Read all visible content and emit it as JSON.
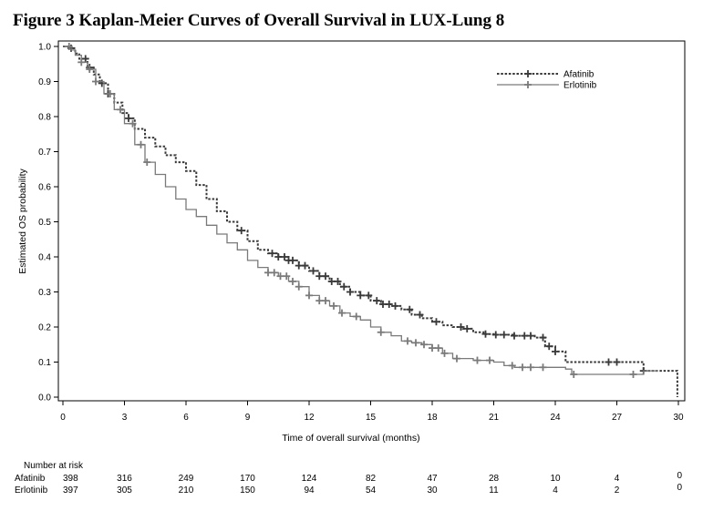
{
  "figure": {
    "title": "Figure 3    Kaplan-Meier Curves of Overall Survival in LUX-Lung 8"
  },
  "chart_data": {
    "type": "line",
    "title": "Kaplan-Meier Curves of Overall Survival in LUX-Lung 8",
    "xlabel": "Time of overall survival (months)",
    "ylabel": "Estimated OS probability",
    "xlim": [
      0,
      30
    ],
    "ylim": [
      0,
      1.0
    ],
    "x_ticks": [
      0,
      3,
      6,
      9,
      12,
      15,
      18,
      21,
      24,
      27,
      30
    ],
    "y_ticks": [
      0.0,
      0.1,
      0.2,
      0.3,
      0.4,
      0.5,
      0.6,
      0.7,
      0.8,
      0.9,
      1.0
    ],
    "x_tick_labels": [
      "0",
      "3",
      "6",
      "9",
      "12",
      "15",
      "18",
      "21",
      "24",
      "27",
      "30"
    ],
    "y_tick_labels": [
      "0.0",
      "0.1",
      "0.2",
      "0.3",
      "0.4",
      "0.5",
      "0.6",
      "0.7",
      "0.8",
      "0.9",
      "1.0"
    ],
    "grid": false,
    "legend_position": "top-right",
    "series": [
      {
        "name": "Afatinib",
        "color": "#3a3a3a",
        "line_style": "dotted",
        "points": [
          [
            0,
            1.0
          ],
          [
            0.4,
            0.995
          ],
          [
            0.6,
            0.98
          ],
          [
            0.8,
            0.965
          ],
          [
            1.2,
            0.94
          ],
          [
            1.5,
            0.92
          ],
          [
            1.8,
            0.895
          ],
          [
            2.2,
            0.865
          ],
          [
            2.5,
            0.84
          ],
          [
            2.9,
            0.81
          ],
          [
            3.2,
            0.795
          ],
          [
            3.5,
            0.765
          ],
          [
            4.0,
            0.74
          ],
          [
            4.5,
            0.715
          ],
          [
            5.0,
            0.69
          ],
          [
            5.5,
            0.67
          ],
          [
            6.0,
            0.645
          ],
          [
            6.5,
            0.605
          ],
          [
            7.0,
            0.565
          ],
          [
            7.5,
            0.53
          ],
          [
            8.0,
            0.5
          ],
          [
            8.5,
            0.475
          ],
          [
            9.0,
            0.445
          ],
          [
            9.5,
            0.42
          ],
          [
            10.0,
            0.41
          ],
          [
            10.5,
            0.4
          ],
          [
            11.0,
            0.39
          ],
          [
            11.5,
            0.375
          ],
          [
            12.0,
            0.36
          ],
          [
            12.5,
            0.345
          ],
          [
            13.0,
            0.33
          ],
          [
            13.5,
            0.315
          ],
          [
            14.0,
            0.3
          ],
          [
            14.5,
            0.29
          ],
          [
            15.0,
            0.275
          ],
          [
            15.5,
            0.265
          ],
          [
            16.0,
            0.26
          ],
          [
            16.5,
            0.25
          ],
          [
            17.0,
            0.235
          ],
          [
            17.5,
            0.225
          ],
          [
            18.0,
            0.215
          ],
          [
            18.5,
            0.205
          ],
          [
            19.0,
            0.2
          ],
          [
            19.5,
            0.195
          ],
          [
            20.0,
            0.185
          ],
          [
            20.5,
            0.18
          ],
          [
            21.0,
            0.178
          ],
          [
            22.0,
            0.175
          ],
          [
            23.0,
            0.17
          ],
          [
            23.5,
            0.145
          ],
          [
            24.0,
            0.13
          ],
          [
            24.5,
            0.1
          ],
          [
            25.5,
            0.1
          ],
          [
            27.0,
            0.1
          ],
          [
            28.0,
            0.1
          ],
          [
            28.3,
            0.075
          ],
          [
            29.0,
            0.075
          ],
          [
            29.9,
            0.075
          ],
          [
            29.95,
            0.0
          ]
        ],
        "censor_x": [
          0.4,
          1.1,
          1.3,
          1.9,
          2.2,
          3.2,
          8.7,
          10.2,
          10.5,
          10.8,
          11.0,
          11.2,
          11.5,
          11.8,
          12.2,
          12.5,
          12.8,
          13.1,
          13.4,
          13.7,
          14.0,
          14.5,
          14.9,
          15.3,
          15.6,
          15.9,
          16.2,
          16.9,
          17.4,
          18.2,
          19.4,
          19.7,
          20.6,
          21.1,
          21.5,
          22.0,
          22.5,
          22.8,
          23.4,
          23.7,
          24.0,
          26.6,
          27.0,
          28.3
        ]
      },
      {
        "name": "Erlotinib",
        "color": "#7a7a7a",
        "line_style": "solid",
        "points": [
          [
            0,
            1.0
          ],
          [
            0.4,
            0.99
          ],
          [
            0.6,
            0.975
          ],
          [
            0.9,
            0.955
          ],
          [
            1.2,
            0.935
          ],
          [
            1.6,
            0.9
          ],
          [
            2.0,
            0.865
          ],
          [
            2.5,
            0.82
          ],
          [
            3.0,
            0.78
          ],
          [
            3.5,
            0.72
          ],
          [
            4.0,
            0.67
          ],
          [
            4.5,
            0.635
          ],
          [
            5.0,
            0.6
          ],
          [
            5.5,
            0.565
          ],
          [
            6.0,
            0.535
          ],
          [
            6.5,
            0.515
          ],
          [
            7.0,
            0.49
          ],
          [
            7.5,
            0.465
          ],
          [
            8.0,
            0.44
          ],
          [
            8.5,
            0.42
          ],
          [
            9.0,
            0.39
          ],
          [
            9.5,
            0.37
          ],
          [
            10.0,
            0.355
          ],
          [
            10.5,
            0.345
          ],
          [
            11.0,
            0.33
          ],
          [
            11.5,
            0.315
          ],
          [
            12.0,
            0.29
          ],
          [
            12.5,
            0.275
          ],
          [
            13.0,
            0.26
          ],
          [
            13.5,
            0.24
          ],
          [
            14.0,
            0.23
          ],
          [
            14.5,
            0.22
          ],
          [
            15.0,
            0.2
          ],
          [
            15.5,
            0.185
          ],
          [
            16.0,
            0.175
          ],
          [
            16.5,
            0.16
          ],
          [
            17.0,
            0.155
          ],
          [
            17.5,
            0.15
          ],
          [
            18.0,
            0.14
          ],
          [
            18.5,
            0.125
          ],
          [
            19.0,
            0.11
          ],
          [
            20.0,
            0.105
          ],
          [
            21.0,
            0.1
          ],
          [
            21.5,
            0.09
          ],
          [
            22.0,
            0.085
          ],
          [
            23.0,
            0.085
          ],
          [
            24.0,
            0.085
          ],
          [
            24.5,
            0.08
          ],
          [
            24.8,
            0.065
          ],
          [
            26.0,
            0.065
          ],
          [
            27.0,
            0.065
          ],
          [
            28.0,
            0.065
          ],
          [
            28.3,
            0.075
          ],
          [
            29.0,
            0.075
          ]
        ],
        "censor_x": [
          0.3,
          0.9,
          1.3,
          1.6,
          2.3,
          2.8,
          3.4,
          3.8,
          4.1,
          10.0,
          10.3,
          10.6,
          10.9,
          11.2,
          11.5,
          12.0,
          12.5,
          12.8,
          13.2,
          13.6,
          14.3,
          15.5,
          16.8,
          17.2,
          17.6,
          18.0,
          18.3,
          18.6,
          19.2,
          20.2,
          20.8,
          21.9,
          22.4,
          22.8,
          23.4,
          24.9,
          27.8
        ]
      }
    ],
    "risk_table": {
      "title": "Number at risk",
      "times": [
        0,
        3,
        6,
        9,
        12,
        15,
        18,
        21,
        24,
        27,
        30
      ],
      "rows": [
        {
          "label": "Afatinib",
          "counts": [
            "398",
            "316",
            "249",
            "170",
            "124",
            "82",
            "47",
            "28",
            "10",
            "4",
            "0"
          ]
        },
        {
          "label": "Erlotinib",
          "counts": [
            "397",
            "305",
            "210",
            "150",
            "94",
            "54",
            "30",
            "11",
            "4",
            "2",
            "0"
          ]
        }
      ]
    }
  }
}
